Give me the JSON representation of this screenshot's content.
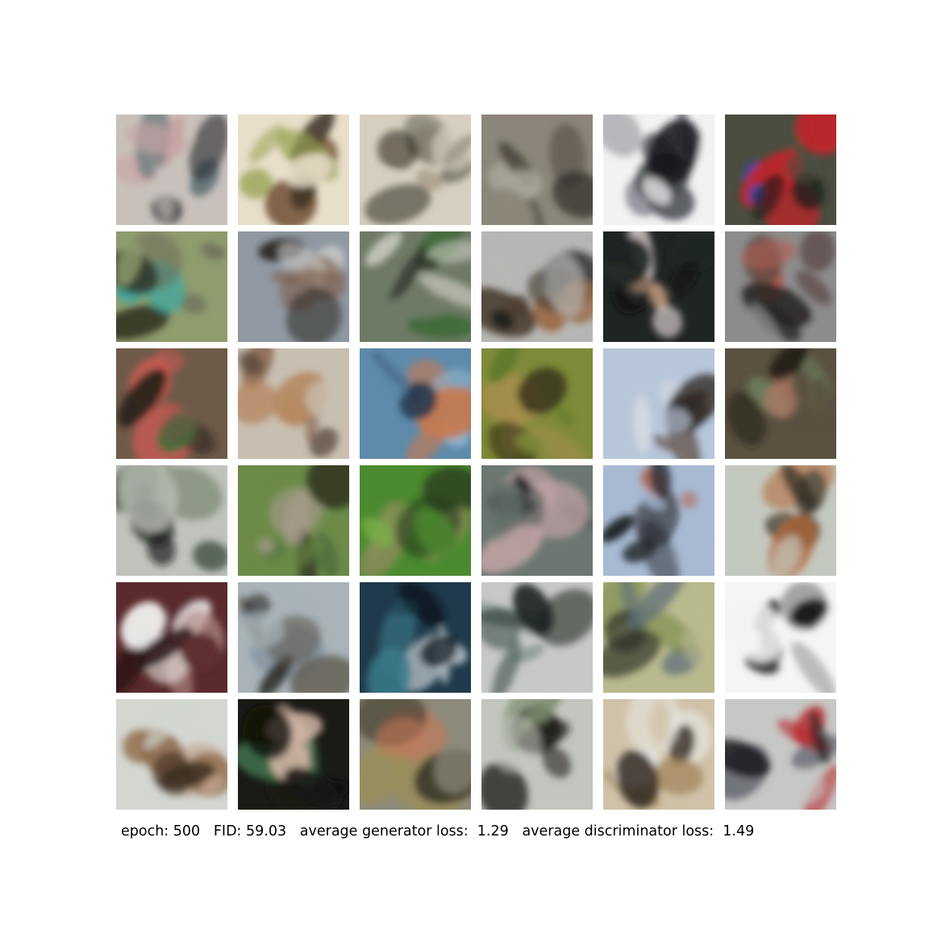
{
  "caption": "epoch: 500   FID: 59.03   average generator loss:  1.29   average discriminator loss:  1.49",
  "grid": {
    "rows": 6,
    "cols": 6,
    "samples": [
      {
        "bg": "#c8c1bb",
        "main": "#c7a3a3",
        "accent": "#5c6e73",
        "dark": "#2f3035"
      },
      {
        "bg": "#e8dfc9",
        "main": "#97a053",
        "accent": "#7a5a3f",
        "dark": "#3b3024"
      },
      {
        "bg": "#d6cfc0",
        "main": "#6e6a5d",
        "accent": "#a79a88",
        "dark": "#262018"
      },
      {
        "bg": "#8c867a",
        "main": "#aaa59a",
        "accent": "#5b564d",
        "dark": "#312c27"
      },
      {
        "bg": "#f2f2f2",
        "main": "#4b4d55",
        "accent": "#8c8e95",
        "dark": "#16171b"
      },
      {
        "bg": "#4a4d3f",
        "main": "#c4232a",
        "accent": "#3844a4",
        "dark": "#1c1d1a"
      },
      {
        "bg": "#8f9c6e",
        "main": "#6b6a58",
        "accent": "#3fa89d",
        "dark": "#2e2f22"
      },
      {
        "bg": "#9098a1",
        "main": "#7a5a45",
        "accent": "#c6c7c6",
        "dark": "#2a2622"
      },
      {
        "bg": "#6e7a66",
        "main": "#d3d2c8",
        "accent": "#416a3b",
        "dark": "#2b2e27"
      },
      {
        "bg": "#b6b7b4",
        "main": "#4a3d30",
        "accent": "#9a6a46",
        "dark": "#1e1b18"
      },
      {
        "bg": "#1f2523",
        "main": "#cfc6c4",
        "accent": "#b7927a",
        "dark": "#0f1110"
      },
      {
        "bg": "#8c8c8c",
        "main": "#5a4a45",
        "accent": "#b55b50",
        "dark": "#262422"
      },
      {
        "bg": "#6e5a48",
        "main": "#d15a54",
        "accent": "#3d6e3a",
        "dark": "#2a221c"
      },
      {
        "bg": "#c9bfb1",
        "main": "#b58760",
        "accent": "#8e6f58",
        "dark": "#4f3f33"
      },
      {
        "bg": "#5e8aab",
        "main": "#c9794d",
        "accent": "#8fb3c8",
        "dark": "#22384e"
      },
      {
        "bg": "#7f8a3a",
        "main": "#a58e4c",
        "accent": "#5c7a2b",
        "dark": "#332e17"
      },
      {
        "bg": "#b8c6da",
        "main": "#5a4537",
        "accent": "#d9dce3",
        "dark": "#2e2722"
      },
      {
        "bg": "#5a5140",
        "main": "#6b7c5b",
        "accent": "#b47a66",
        "dark": "#231f18"
      },
      {
        "bg": "#bfc3bb",
        "main": "#3a4a3a",
        "accent": "#6b7a62",
        "dark": "#141714"
      },
      {
        "bg": "#6c8a48",
        "main": "#a99b8f",
        "accent": "#4f6e3c",
        "dark": "#2e3322"
      },
      {
        "bg": "#4b8a2f",
        "main": "#8c8a5a",
        "accent": "#7bb04a",
        "dark": "#2a3d1e"
      },
      {
        "bg": "#6b7770",
        "main": "#c8a6a8",
        "accent": "#4e5a55",
        "dark": "#1c201e"
      },
      {
        "bg": "#a8b9d2",
        "main": "#2f3338",
        "accent": "#b36b5a",
        "dark": "#1a1c20"
      },
      {
        "bg": "#c4c9bf",
        "main": "#5a5446",
        "accent": "#b36b3e",
        "dark": "#2a261f"
      },
      {
        "bg": "#5a2a2c",
        "main": "#f2f2f0",
        "accent": "#b5908a",
        "dark": "#2a1416"
      },
      {
        "bg": "#a9b3b8",
        "main": "#5f5a4e",
        "accent": "#7d8a9a",
        "dark": "#25241f"
      },
      {
        "bg": "#1f3a4a",
        "main": "#d7dde2",
        "accent": "#3a7a8a",
        "dark": "#0e1a22"
      },
      {
        "bg": "#c7c9c6",
        "main": "#4a5a55",
        "accent": "#7e8e8c",
        "dark": "#1d2321"
      },
      {
        "bg": "#b9b98e",
        "main": "#5e6e7a",
        "accent": "#7a8a4a",
        "dark": "#2a2f24"
      },
      {
        "bg": "#f5f5f5",
        "main": "#3a3c3e",
        "accent": "#9a9c9e",
        "dark": "#121314"
      },
      {
        "bg": "#d3d6d1",
        "main": "#8e6a48",
        "accent": "#c0a18c",
        "dark": "#3b2c20"
      },
      {
        "bg": "#1a1a16",
        "main": "#d8b8a8",
        "accent": "#4a8a5a",
        "dark": "#0a0a08"
      },
      {
        "bg": "#8c8a7a",
        "main": "#9a8e5a",
        "accent": "#c47a5a",
        "dark": "#3a362a"
      },
      {
        "bg": "#c3c6bf",
        "main": "#3e3a36",
        "accent": "#7a8a6a",
        "dark": "#1a1816"
      },
      {
        "bg": "#d0c2a8",
        "main": "#e8e8e6",
        "accent": "#a0845a",
        "dark": "#2a221a"
      },
      {
        "bg": "#c6c8c5",
        "main": "#b8242a",
        "accent": "#4a4e58",
        "dark": "#16181c"
      }
    ]
  }
}
